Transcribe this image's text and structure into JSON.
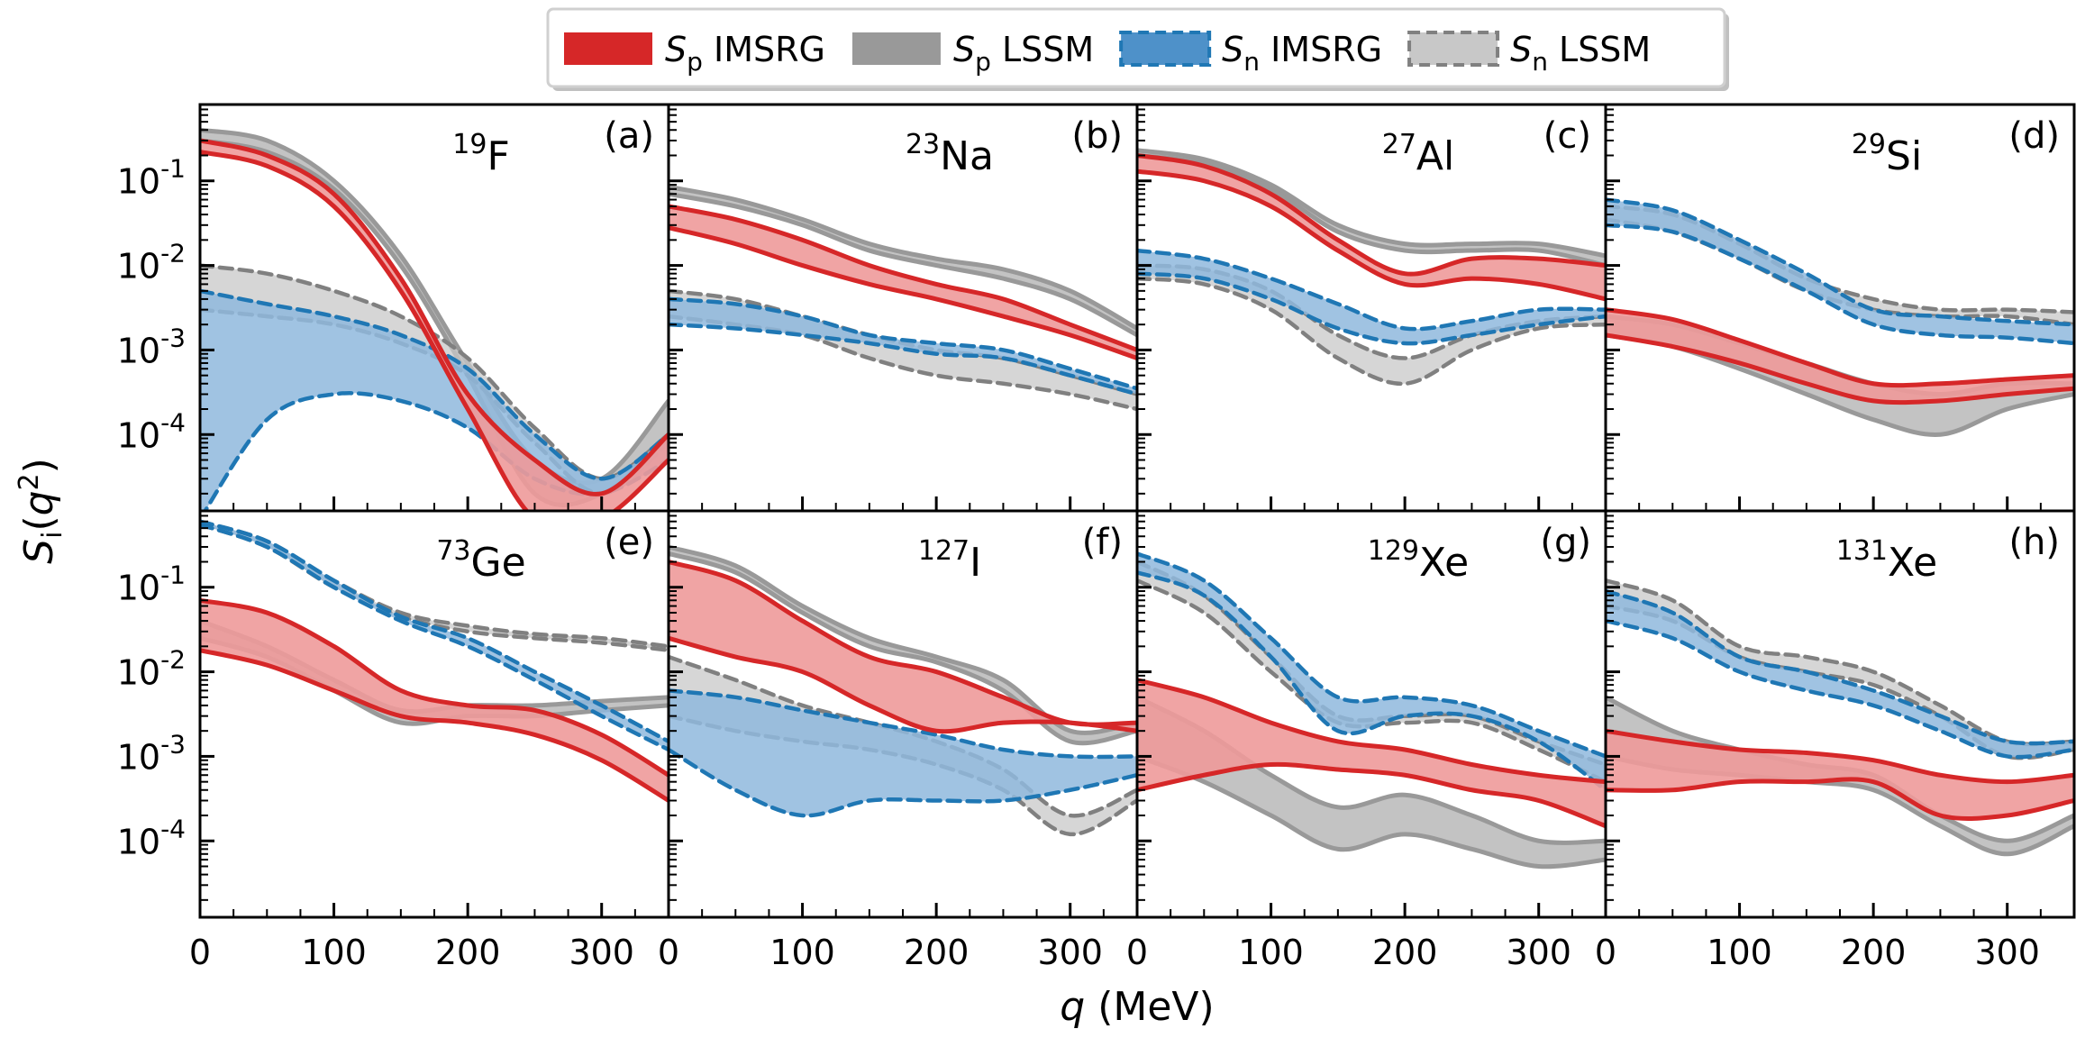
{
  "chart_data": {
    "type": "area",
    "xlabel": "q (MeV)",
    "ylabel": "S_i(q^2)",
    "x_ticks": [
      "0",
      "100",
      "200",
      "300"
    ],
    "xlim": [
      0,
      350
    ],
    "ylim": [
      1.25e-05,
      0.8
    ],
    "y_scale": "log",
    "y_ticks": [
      {
        "base": "10",
        "exp": "-1",
        "value": 0.1
      },
      {
        "base": "10",
        "exp": "-2",
        "value": 0.01
      },
      {
        "base": "10",
        "exp": "-3",
        "value": 0.001
      },
      {
        "base": "10",
        "exp": "-4",
        "value": 0.0001
      }
    ],
    "legend": {
      "placement": "top-center",
      "entries": [
        {
          "key": "sp_imsrg",
          "sym": "S",
          "sub": "p",
          "label": " IMSRG",
          "color": "#d62728",
          "dashed": false
        },
        {
          "key": "sp_lssm",
          "sym": "S",
          "sub": "p",
          "label": " LSSM",
          "color": "#999999",
          "dashed": false
        },
        {
          "key": "sn_imsrg",
          "sym": "S",
          "sub": "n",
          "label": " IMSRG",
          "color": "#1f77b4",
          "dashed": true
        },
        {
          "key": "sn_lssm",
          "sym": "S",
          "sub": "n",
          "label": " LSSM",
          "color": "#999999",
          "dashed": true
        }
      ]
    },
    "x": [
      0,
      50,
      100,
      150,
      200,
      250,
      300,
      350
    ],
    "panels": [
      {
        "tag": "(a)",
        "mass": "19",
        "element": "F",
        "sp_imsrg": {
          "lower": [
            0.22,
            0.15,
            0.05,
            0.005,
            0.0002,
            1e-05,
            1e-05,
            5e-05
          ],
          "upper": [
            0.3,
            0.2,
            0.07,
            0.007,
            0.0003,
            5e-05,
            2e-05,
            0.0001
          ]
        },
        "sp_lssm": {
          "lower": [
            0.3,
            0.22,
            0.08,
            0.01,
            0.0005,
            2e-05,
            2e-05,
            0.0001
          ],
          "upper": [
            0.4,
            0.3,
            0.1,
            0.013,
            0.0007,
            5e-05,
            3e-05,
            0.00025
          ]
        },
        "sn_imsrg": {
          "lower": [
            1e-05,
            0.00015,
            0.0003,
            0.00025,
            0.00012,
            3e-05,
            2e-05,
            5e-05
          ],
          "upper": [
            0.005,
            0.0035,
            0.0025,
            0.0015,
            0.0006,
            0.0001,
            3e-05,
            0.0001
          ]
        },
        "sn_lssm": {
          "lower": [
            0.003,
            0.0025,
            0.002,
            0.0012,
            0.0005,
            8e-05,
            2e-05,
            8e-05
          ],
          "upper": [
            0.01,
            0.008,
            0.005,
            0.0025,
            0.0008,
            0.00012,
            3e-05,
            0.0001
          ]
        }
      },
      {
        "tag": "(b)",
        "mass": "23",
        "element": "Na",
        "sp_imsrg": {
          "lower": [
            0.028,
            0.018,
            0.01,
            0.006,
            0.004,
            0.0025,
            0.0015,
            0.0008
          ],
          "upper": [
            0.05,
            0.035,
            0.02,
            0.01,
            0.006,
            0.004,
            0.002,
            0.001
          ]
        },
        "sp_lssm": {
          "lower": [
            0.07,
            0.05,
            0.03,
            0.015,
            0.01,
            0.007,
            0.004,
            0.0015
          ],
          "upper": [
            0.085,
            0.06,
            0.035,
            0.018,
            0.012,
            0.009,
            0.005,
            0.0018
          ]
        },
        "sn_imsrg": {
          "lower": [
            0.002,
            0.0018,
            0.0015,
            0.0012,
            0.0009,
            0.0008,
            0.0005,
            0.0003
          ],
          "upper": [
            0.004,
            0.0035,
            0.0025,
            0.0015,
            0.0012,
            0.001,
            0.0006,
            0.00035
          ]
        },
        "sn_lssm": {
          "lower": [
            0.0025,
            0.002,
            0.0015,
            0.0008,
            0.0005,
            0.0004,
            0.0003,
            0.0002
          ],
          "upper": [
            0.005,
            0.004,
            0.0025,
            0.0015,
            0.001,
            0.0008,
            0.0005,
            0.0003
          ]
        }
      },
      {
        "tag": "(c)",
        "mass": "27",
        "element": "Al",
        "sp_imsrg": {
          "lower": [
            0.13,
            0.1,
            0.05,
            0.015,
            0.006,
            0.007,
            0.006,
            0.004
          ],
          "upper": [
            0.2,
            0.15,
            0.07,
            0.02,
            0.008,
            0.012,
            0.012,
            0.01
          ]
        },
        "sp_lssm": {
          "lower": [
            0.2,
            0.16,
            0.08,
            0.025,
            0.015,
            0.015,
            0.015,
            0.01
          ],
          "upper": [
            0.23,
            0.18,
            0.09,
            0.03,
            0.018,
            0.018,
            0.018,
            0.013
          ]
        },
        "sn_imsrg": {
          "lower": [
            0.008,
            0.007,
            0.004,
            0.0018,
            0.0012,
            0.0015,
            0.002,
            0.0025
          ],
          "upper": [
            0.015,
            0.012,
            0.007,
            0.0035,
            0.0018,
            0.0022,
            0.003,
            0.003
          ]
        },
        "sn_lssm": {
          "lower": [
            0.007,
            0.006,
            0.003,
            0.0008,
            0.0004,
            0.001,
            0.0018,
            0.002
          ],
          "upper": [
            0.01,
            0.009,
            0.005,
            0.0015,
            0.0008,
            0.0015,
            0.0022,
            0.0025
          ]
        }
      },
      {
        "tag": "(d)",
        "mass": "29",
        "element": "Si",
        "sp_imsrg": {
          "lower": [
            0.0015,
            0.0011,
            0.0007,
            0.0004,
            0.00025,
            0.00025,
            0.0003,
            0.00035
          ],
          "upper": [
            0.003,
            0.0023,
            0.0013,
            0.0007,
            0.0004,
            0.0004,
            0.00045,
            0.0005
          ]
        },
        "sp_lssm": {
          "lower": [
            0.0015,
            0.0011,
            0.0006,
            0.0003,
            0.00015,
            0.0001,
            0.0002,
            0.0003
          ],
          "upper": [
            0.0025,
            0.002,
            0.0012,
            0.0007,
            0.0004,
            0.0003,
            0.0004,
            0.0004
          ]
        },
        "sn_imsrg": {
          "lower": [
            0.03,
            0.025,
            0.012,
            0.005,
            0.002,
            0.0015,
            0.0014,
            0.0012
          ],
          "upper": [
            0.06,
            0.045,
            0.02,
            0.008,
            0.003,
            0.0025,
            0.0022,
            0.002
          ]
        },
        "sn_lssm": {
          "lower": [
            0.035,
            0.025,
            0.012,
            0.005,
            0.003,
            0.0025,
            0.0025,
            0.002
          ],
          "upper": [
            0.05,
            0.04,
            0.018,
            0.007,
            0.004,
            0.003,
            0.003,
            0.0028
          ]
        }
      },
      {
        "tag": "(e)",
        "mass": "73",
        "element": "Ge",
        "sp_imsrg": {
          "lower": [
            0.018,
            0.012,
            0.006,
            0.003,
            0.0025,
            0.0018,
            0.0009,
            0.0003
          ],
          "upper": [
            0.07,
            0.05,
            0.02,
            0.006,
            0.004,
            0.0035,
            0.0018,
            0.0006
          ]
        },
        "sp_lssm": {
          "lower": [
            0.025,
            0.015,
            0.006,
            0.0025,
            0.003,
            0.003,
            0.0035,
            0.004
          ],
          "upper": [
            0.04,
            0.02,
            0.008,
            0.0035,
            0.004,
            0.004,
            0.0045,
            0.005
          ]
        },
        "sn_imsrg": {
          "lower": [
            0.55,
            0.3,
            0.1,
            0.04,
            0.02,
            0.008,
            0.003,
            0.0012
          ],
          "upper": [
            0.6,
            0.35,
            0.12,
            0.045,
            0.025,
            0.01,
            0.004,
            0.0015
          ]
        },
        "sn_lssm": {
          "lower": [
            0.55,
            0.3,
            0.1,
            0.045,
            0.03,
            0.025,
            0.022,
            0.018
          ],
          "upper": [
            0.6,
            0.35,
            0.12,
            0.05,
            0.035,
            0.028,
            0.025,
            0.02
          ]
        }
      },
      {
        "tag": "(f)",
        "mass": "127",
        "element": "I",
        "sp_imsrg": {
          "lower": [
            0.025,
            0.015,
            0.01,
            0.004,
            0.002,
            0.0025,
            0.0025,
            0.002
          ],
          "upper": [
            0.2,
            0.12,
            0.04,
            0.015,
            0.01,
            0.005,
            0.0025,
            0.0025
          ]
        },
        "sp_lssm": {
          "lower": [
            0.25,
            0.15,
            0.05,
            0.02,
            0.013,
            0.006,
            0.0015,
            0.002
          ],
          "upper": [
            0.3,
            0.18,
            0.06,
            0.025,
            0.015,
            0.008,
            0.002,
            0.0025
          ]
        },
        "sn_imsrg": {
          "lower": [
            0.0012,
            0.0004,
            0.0002,
            0.0003,
            0.0003,
            0.0003,
            0.0004,
            0.0006
          ],
          "upper": [
            0.006,
            0.005,
            0.0035,
            0.0025,
            0.0018,
            0.0012,
            0.001,
            0.001
          ]
        },
        "sn_lssm": {
          "lower": [
            0.003,
            0.002,
            0.0015,
            0.0012,
            0.0008,
            0.0004,
            0.00012,
            0.0003
          ],
          "upper": [
            0.015,
            0.008,
            0.004,
            0.0025,
            0.0015,
            0.0007,
            0.0002,
            0.0004
          ]
        }
      },
      {
        "tag": "(g)",
        "mass": "129",
        "element": "Xe",
        "sp_imsrg": {
          "lower": [
            0.0004,
            0.0006,
            0.0008,
            0.0007,
            0.0006,
            0.0004,
            0.0003,
            0.00015
          ],
          "upper": [
            0.008,
            0.005,
            0.0025,
            0.0015,
            0.0012,
            0.0008,
            0.0006,
            0.0005
          ]
        },
        "sp_lssm": {
          "lower": [
            0.001,
            0.0005,
            0.0002,
            8e-05,
            0.00012,
            8e-05,
            5e-05,
            6e-05
          ],
          "upper": [
            0.005,
            0.002,
            0.0006,
            0.00025,
            0.00035,
            0.0002,
            0.0001,
            0.0001
          ]
        },
        "sn_imsrg": {
          "lower": [
            0.15,
            0.08,
            0.015,
            0.002,
            0.003,
            0.003,
            0.0015,
            0.0004
          ],
          "upper": [
            0.25,
            0.12,
            0.025,
            0.005,
            0.005,
            0.004,
            0.002,
            0.001
          ]
        },
        "sn_lssm": {
          "lower": [
            0.12,
            0.05,
            0.01,
            0.0025,
            0.0025,
            0.0025,
            0.0012,
            0.0005
          ],
          "upper": [
            0.2,
            0.08,
            0.015,
            0.003,
            0.003,
            0.003,
            0.0015,
            0.0008
          ]
        }
      },
      {
        "tag": "(h)",
        "mass": "131",
        "element": "Xe",
        "sp_imsrg": {
          "lower": [
            0.0004,
            0.0004,
            0.0005,
            0.0005,
            0.0005,
            0.0002,
            0.0002,
            0.0003
          ],
          "upper": [
            0.002,
            0.0015,
            0.0012,
            0.0011,
            0.0009,
            0.0006,
            0.0005,
            0.0006
          ]
        },
        "sp_lssm": {
          "lower": [
            0.001,
            0.0007,
            0.0006,
            0.0005,
            0.0004,
            0.00015,
            7e-05,
            0.00015
          ],
          "upper": [
            0.005,
            0.002,
            0.0012,
            0.0008,
            0.0006,
            0.0002,
            0.0001,
            0.0002
          ]
        },
        "sn_imsrg": {
          "lower": [
            0.04,
            0.025,
            0.01,
            0.006,
            0.004,
            0.002,
            0.001,
            0.0012
          ],
          "upper": [
            0.09,
            0.05,
            0.015,
            0.01,
            0.006,
            0.003,
            0.0015,
            0.0015
          ]
        },
        "sn_lssm": {
          "lower": [
            0.06,
            0.04,
            0.015,
            0.01,
            0.007,
            0.003,
            0.001,
            0.0012
          ],
          "upper": [
            0.12,
            0.07,
            0.02,
            0.015,
            0.01,
            0.004,
            0.0015,
            0.0015
          ]
        }
      }
    ]
  }
}
